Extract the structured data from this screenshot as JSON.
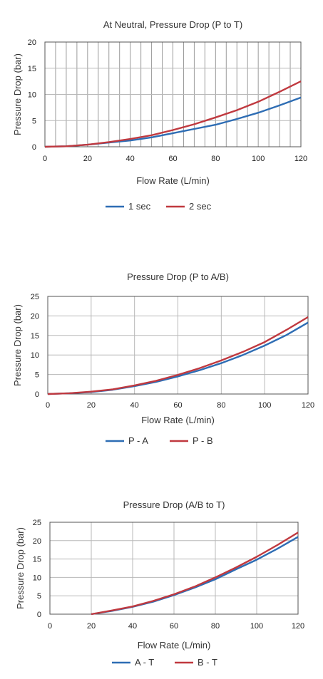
{
  "chart_data": [
    {
      "type": "line",
      "title": "At Neutral, Pressure Drop (P to T)",
      "xlabel": "Flow Rate (L/min)",
      "ylabel": "Pressure Drop (bar)",
      "xlim": [
        0,
        120
      ],
      "ylim": [
        0,
        20
      ],
      "xticks": [
        "0",
        "20",
        "40",
        "60",
        "80",
        "100",
        "120"
      ],
      "yticks": [
        "0",
        "5",
        "10",
        "15",
        "20"
      ],
      "grid": "dense vertical, major horizontal",
      "legend": "bottom-center",
      "x": [
        0,
        10,
        20,
        30,
        40,
        50,
        60,
        70,
        80,
        90,
        100,
        110,
        120
      ],
      "series": [
        {
          "name": "1 sec",
          "color": "#2e6db4",
          "values": [
            0,
            0.1,
            0.4,
            0.8,
            1.2,
            1.8,
            2.6,
            3.4,
            4.2,
            5.3,
            6.5,
            7.9,
            9.4
          ]
        },
        {
          "name": "2 sec",
          "color": "#c0393f",
          "values": [
            0,
            0.1,
            0.4,
            0.9,
            1.5,
            2.2,
            3.2,
            4.3,
            5.6,
            7.0,
            8.6,
            10.5,
            12.5
          ]
        }
      ]
    },
    {
      "type": "line",
      "title": "Pressure Drop (P to A/B)",
      "xlabel": "Flow Rate (L/min)",
      "ylabel": "Pressure Drop (bar)",
      "xlim": [
        0,
        120
      ],
      "ylim": [
        0,
        25
      ],
      "xticks": [
        "0",
        "20",
        "40",
        "60",
        "80",
        "100",
        "120"
      ],
      "yticks": [
        "0",
        "5",
        "10",
        "15",
        "20",
        "25"
      ],
      "grid": "on",
      "legend": "bottom-center",
      "x": [
        0,
        10,
        20,
        30,
        40,
        50,
        60,
        70,
        80,
        90,
        100,
        110,
        120
      ],
      "series": [
        {
          "name": "P - A",
          "color": "#2e6db4",
          "values": [
            0,
            0.2,
            0.5,
            1.1,
            2.0,
            3.1,
            4.5,
            6.1,
            7.9,
            10.0,
            12.4,
            15.1,
            18.3
          ]
        },
        {
          "name": "P - B",
          "color": "#c0393f",
          "values": [
            0,
            0.2,
            0.6,
            1.2,
            2.2,
            3.4,
            4.9,
            6.6,
            8.6,
            10.8,
            13.3,
            16.4,
            19.7
          ]
        }
      ]
    },
    {
      "type": "line",
      "title": "Pressure Drop (A/B to T)",
      "xlabel": "Flow Rate (L/min)",
      "ylabel": "Pressure Drop (bar)",
      "xlim": [
        0,
        120
      ],
      "ylim": [
        0,
        25
      ],
      "xticks": [
        "0",
        "20",
        "40",
        "60",
        "80",
        "100",
        "120"
      ],
      "yticks": [
        "0",
        "5",
        "10",
        "15",
        "20",
        "25"
      ],
      "grid": "on",
      "legend": "bottom-center",
      "x": [
        20,
        30,
        40,
        50,
        60,
        70,
        80,
        90,
        100,
        110,
        120
      ],
      "series": [
        {
          "name": "A - T",
          "color": "#2e6db4",
          "values": [
            0,
            0.9,
            2.0,
            3.4,
            5.2,
            7.2,
            9.5,
            12.2,
            14.8,
            17.8,
            21.0
          ]
        },
        {
          "name": "B - T",
          "color": "#c0393f",
          "values": [
            0,
            1.0,
            2.1,
            3.6,
            5.4,
            7.5,
            10.0,
            12.7,
            15.6,
            18.8,
            22.2
          ]
        }
      ]
    }
  ]
}
